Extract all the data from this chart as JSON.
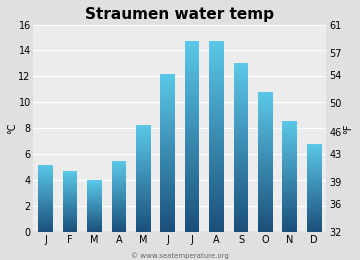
{
  "title": "Straumen water temp",
  "months": [
    "J",
    "F",
    "M",
    "A",
    "M",
    "J",
    "J",
    "A",
    "S",
    "O",
    "N",
    "D"
  ],
  "values_c": [
    5.2,
    4.7,
    4.0,
    5.5,
    8.3,
    12.2,
    14.7,
    14.7,
    13.0,
    10.8,
    8.6,
    6.8
  ],
  "ylim_c": [
    0,
    16
  ],
  "yticks_c": [
    0,
    2,
    4,
    6,
    8,
    10,
    12,
    14,
    16
  ],
  "ylim_f": [
    32,
    61
  ],
  "yticks_f": [
    32,
    36,
    39,
    43,
    46,
    50,
    54,
    57,
    61
  ],
  "ylabel_left": "°C",
  "ylabel_right": "°F",
  "bar_color_top": "#5bc8e8",
  "bar_color_bottom": "#1a4f7a",
  "background_color": "#e0e0e0",
  "plot_bg_color": "#ececec",
  "title_fontsize": 11,
  "axis_fontsize": 7,
  "tick_fontsize": 7,
  "watermark": "© www.seatemperature.org"
}
